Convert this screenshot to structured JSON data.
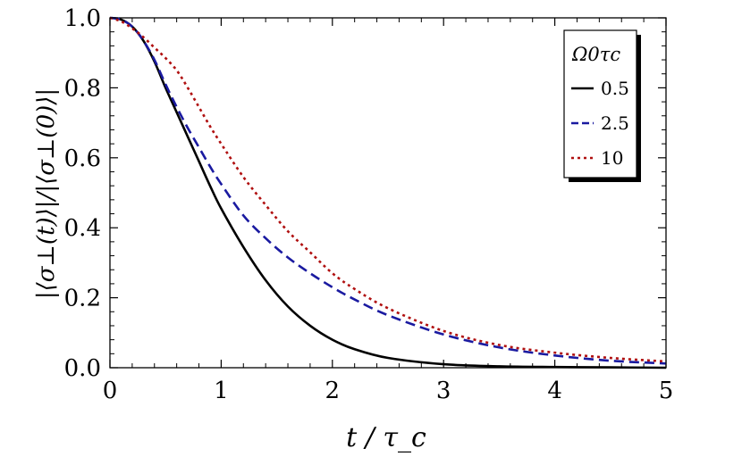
{
  "chart_data": {
    "type": "line",
    "title": "",
    "xlabel": "t / τ_c",
    "ylabel": "|⟨σ⊥(t)⟩|/|⟨σ⊥(0)⟩|",
    "xlim": [
      0,
      5
    ],
    "ylim": [
      0,
      1
    ],
    "x_ticks": [
      0,
      1,
      2,
      3,
      4,
      5
    ],
    "y_ticks": [
      0.0,
      0.2,
      0.4,
      0.6,
      0.8,
      1.0
    ],
    "x_tick_labels": [
      "0",
      "1",
      "2",
      "3",
      "4",
      "5"
    ],
    "y_tick_labels": [
      "0.0",
      "0.2",
      "0.4",
      "0.6",
      "0.8",
      "1.0"
    ],
    "grid": false,
    "legend": {
      "title": "Ω0τc",
      "placement": "top-right"
    },
    "series": [
      {
        "name": "0.5",
        "color": "#000000",
        "dash": "solid",
        "x": [
          0,
          0.1,
          0.2,
          0.3,
          0.4,
          0.5,
          0.6,
          0.7,
          0.8,
          0.9,
          1.0,
          1.2,
          1.4,
          1.6,
          1.8,
          2.0,
          2.2,
          2.5,
          3.0,
          3.5,
          4.0,
          4.5,
          5.0
        ],
        "y": [
          1.0,
          0.995,
          0.975,
          0.935,
          0.875,
          0.8,
          0.73,
          0.66,
          0.59,
          0.52,
          0.455,
          0.345,
          0.25,
          0.175,
          0.12,
          0.08,
          0.053,
          0.028,
          0.01,
          0.004,
          0.002,
          0.001,
          0.0
        ]
      },
      {
        "name": "2.5",
        "color": "#1a1aa0",
        "dash": "dashed",
        "x": [
          0,
          0.1,
          0.2,
          0.3,
          0.4,
          0.5,
          0.6,
          0.7,
          0.8,
          0.9,
          1.0,
          1.2,
          1.4,
          1.6,
          1.8,
          2.0,
          2.2,
          2.5,
          3.0,
          3.5,
          4.0,
          4.5,
          5.0
        ],
        "y": [
          1.0,
          0.995,
          0.975,
          0.935,
          0.88,
          0.81,
          0.745,
          0.685,
          0.63,
          0.575,
          0.525,
          0.435,
          0.37,
          0.315,
          0.27,
          0.23,
          0.195,
          0.15,
          0.095,
          0.058,
          0.035,
          0.02,
          0.012
        ]
      },
      {
        "name": "10",
        "color": "#b01010",
        "dash": "dotted",
        "x": [
          0,
          0.1,
          0.2,
          0.3,
          0.4,
          0.5,
          0.6,
          0.7,
          0.8,
          0.9,
          1.0,
          1.2,
          1.4,
          1.6,
          1.8,
          2.0,
          2.2,
          2.5,
          3.0,
          3.5,
          4.0,
          4.5,
          5.0
        ],
        "y": [
          1.0,
          0.99,
          0.97,
          0.945,
          0.915,
          0.885,
          0.85,
          0.8,
          0.745,
          0.69,
          0.64,
          0.545,
          0.465,
          0.39,
          0.33,
          0.27,
          0.225,
          0.17,
          0.105,
          0.065,
          0.043,
          0.028,
          0.018
        ]
      }
    ]
  }
}
